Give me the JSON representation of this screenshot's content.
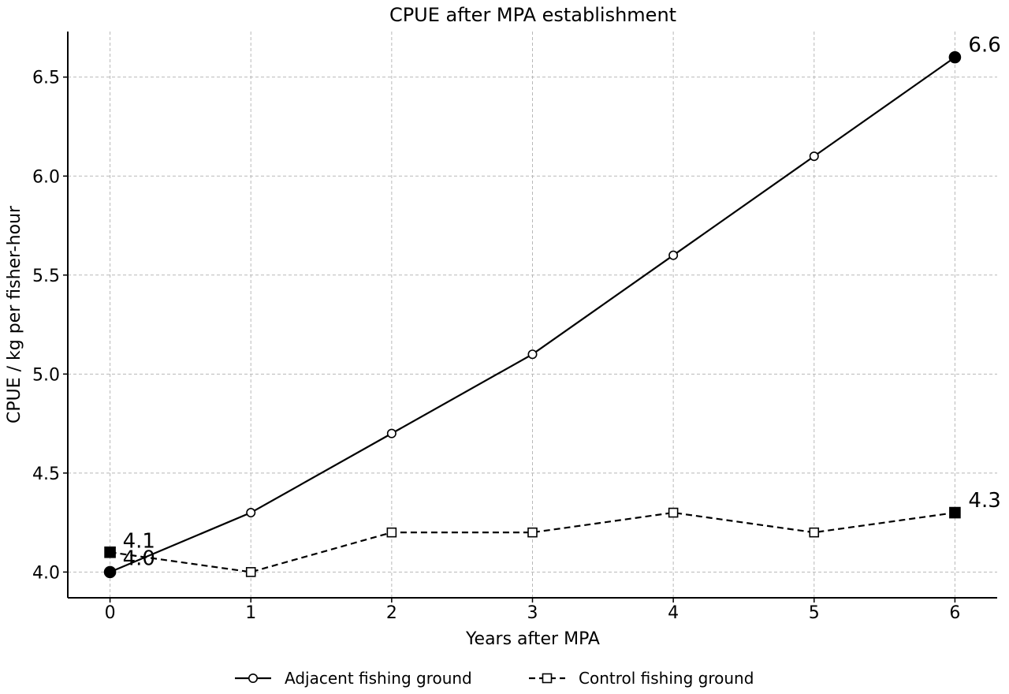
{
  "chart_data": {
    "type": "line",
    "title": "CPUE after MPA establishment",
    "xlabel": "Years after MPA",
    "ylabel": "CPUE / kg per fisher-hour",
    "x": [
      0,
      1,
      2,
      3,
      4,
      5,
      6
    ],
    "xlim": [
      -0.3,
      6.3
    ],
    "ylim": [
      3.87,
      6.73
    ],
    "xticks": [
      "0",
      "1",
      "2",
      "3",
      "4",
      "5",
      "6"
    ],
    "yticks": [
      "4.0",
      "4.5",
      "5.0",
      "5.5",
      "6.0",
      "6.5"
    ],
    "grid": true,
    "legend_position": "bottom-center",
    "series": [
      {
        "name": "Adjacent fishing ground",
        "values": [
          4.0,
          4.3,
          4.7,
          5.1,
          5.6,
          6.1,
          6.6
        ],
        "marker": "circle",
        "line_style": "solid",
        "color": "#000000",
        "end_labels": [
          "4.0",
          "6.6"
        ]
      },
      {
        "name": "Control fishing ground",
        "values": [
          4.1,
          4.0,
          4.2,
          4.2,
          4.3,
          4.2,
          4.3
        ],
        "marker": "square",
        "line_style": "dashed",
        "color": "#000000",
        "end_labels": [
          "4.1",
          "4.3"
        ]
      }
    ]
  }
}
